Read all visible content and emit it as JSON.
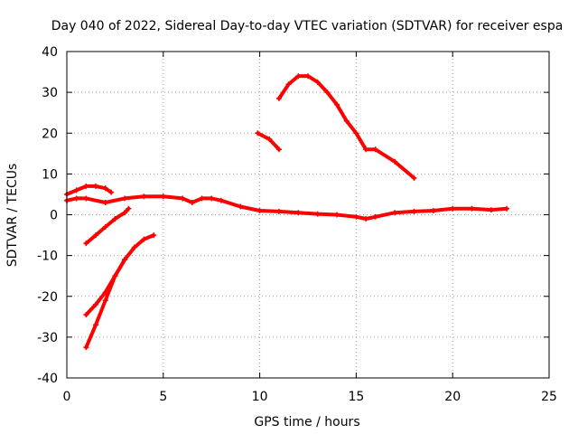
{
  "colors": {
    "background": "#ffffff",
    "axis": "#000000",
    "grid": "#a0a0a0",
    "series": "#ff0000"
  },
  "chart_data": {
    "type": "scatter",
    "title": "Day 040 of 2022, Sidereal Day-to-day VTEC variation (SDTVAR) for receiver espa",
    "xlabel": "GPS time / hours",
    "ylabel": "SDTVAR / TECUs",
    "xlim": [
      0,
      25
    ],
    "ylim": [
      -40,
      40
    ],
    "grid": true,
    "xticks": [
      0,
      5,
      10,
      15,
      20,
      25
    ],
    "xtick_labels": [
      "0",
      "5",
      "10",
      "15",
      "20",
      "25"
    ],
    "yticks": [
      -40,
      -30,
      -20,
      -10,
      0,
      10,
      20,
      30,
      40
    ],
    "ytick_labels": [
      "-40",
      "-30",
      "-20",
      "-10",
      "0",
      "10",
      "20",
      "30",
      "40"
    ],
    "series": [
      {
        "name": "main-trace-0",
        "x": [
          0,
          0.5,
          1.0,
          2.0,
          3.0,
          4.0,
          5.0,
          6.0,
          6.5,
          7.0,
          7.5,
          8.0,
          9.0,
          10.0,
          11.0,
          12.0,
          13.0,
          14.0,
          15.0,
          15.5,
          16.0,
          17.0,
          18.0,
          19.0,
          20.0,
          21.0,
          22.0,
          22.8
        ],
        "y": [
          3.5,
          4,
          4,
          3,
          4,
          4.5,
          4.5,
          4,
          3,
          4,
          4,
          3.5,
          2,
          1,
          0.8,
          0.5,
          0.2,
          0,
          -0.5,
          -1,
          -0.5,
          0.5,
          0.8,
          1,
          1.5,
          1.5,
          1.2,
          1.5
        ]
      },
      {
        "name": "early-fragment-top",
        "x": [
          0,
          0.5,
          1.0,
          1.5,
          2.0,
          2.3
        ],
        "y": [
          5,
          6,
          7,
          7,
          6.5,
          5.5
        ]
      },
      {
        "name": "short-rising-arc",
        "x": [
          1.0,
          1.5,
          2.0,
          2.5,
          3.0,
          3.2
        ],
        "y": [
          -7,
          -5,
          -3,
          -1,
          0.5,
          1.5
        ]
      },
      {
        "name": "long-rising-arc-a",
        "x": [
          1.0,
          1.5,
          2.0,
          2.5,
          3.0,
          3.5,
          4.0,
          4.5
        ],
        "y": [
          -24.5,
          -22,
          -19,
          -15,
          -11,
          -8,
          -6,
          -5
        ]
      },
      {
        "name": "long-rising-arc-b",
        "x": [
          1.0,
          1.5,
          2.0,
          2.5,
          3.0
        ],
        "y": [
          -32.5,
          -27,
          -21,
          -15,
          -11
        ]
      },
      {
        "name": "short-falling-arc",
        "x": [
          9.9,
          10.5,
          11.0
        ],
        "y": [
          20,
          18.5,
          16
        ]
      },
      {
        "name": "peak-arc",
        "x": [
          11.0,
          11.5,
          12.0,
          12.5,
          13.0,
          13.5,
          14.0,
          14.5,
          15.0,
          15.5,
          16.0,
          17.0,
          18.0
        ],
        "y": [
          28.5,
          32,
          34,
          34,
          32.5,
          30,
          27,
          23,
          20,
          16,
          16,
          13,
          9
        ]
      }
    ]
  }
}
